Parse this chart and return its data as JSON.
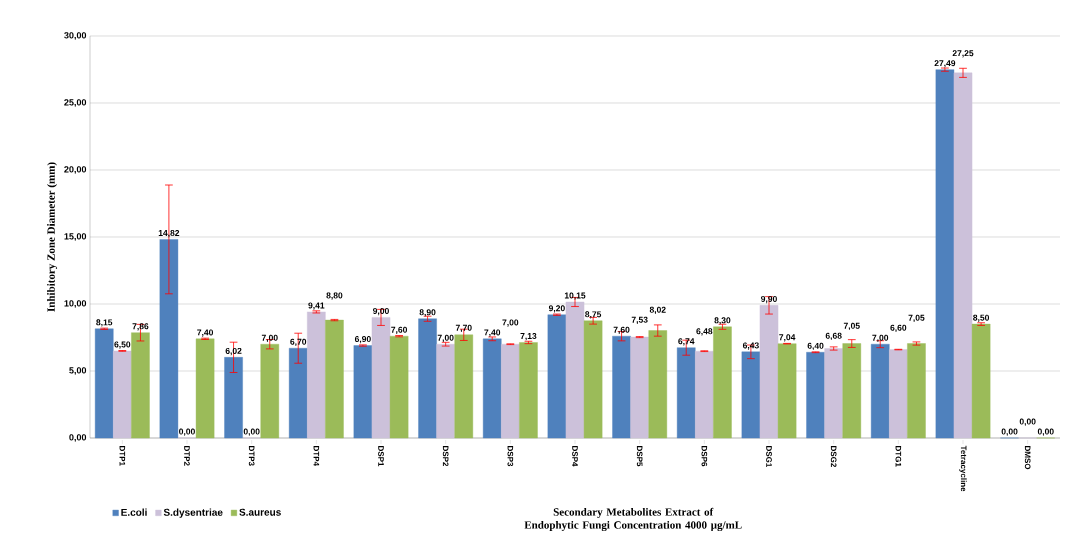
{
  "chart_data": {
    "type": "bar",
    "xlabel": "Secondary Metabolites Extract of Endophytic Fungi Concentration 4000 µg/mL",
    "ylabel": "Inhibitory Zone Diameter (mm)",
    "categories": [
      "DTP1",
      "DTP2",
      "DTP3",
      "DTP4",
      "DSP1",
      "DSP2",
      "DSP3",
      "DSP4",
      "DSP5",
      "DSP6",
      "DSG1",
      "DSG2",
      "DTG1",
      "Tetracycline",
      "DMSO"
    ],
    "series": [
      {
        "name": "E.coli",
        "color": "#4f81bd",
        "values": [
          8.15,
          14.82,
          6.02,
          6.7,
          6.9,
          8.9,
          7.4,
          9.2,
          7.6,
          6.74,
          6.43,
          6.4,
          7.0,
          27.49,
          0.0
        ],
        "errors": [
          0.05,
          4.06,
          1.13,
          1.12,
          0.05,
          0.19,
          0.14,
          0.05,
          0.35,
          0.56,
          0.51,
          0.03,
          0.26,
          0.12,
          null
        ],
        "value_labels": [
          "8,15",
          "14,82",
          "6,02",
          "6,70",
          "6,90",
          "8,90",
          "7,40",
          "9,20",
          "7,60",
          "6,74",
          "6,43",
          "6,40",
          "7,00",
          "27,49",
          "0,00"
        ]
      },
      {
        "name": "S.dysentriae",
        "color": "#ccc1da",
        "values": [
          6.5,
          0.0,
          0.0,
          9.41,
          9.0,
          7.0,
          7.0,
          10.15,
          7.53,
          6.48,
          9.9,
          6.68,
          6.6,
          27.25,
          0.0
        ],
        "errors": [
          0.03,
          null,
          null,
          0.08,
          0.6,
          0.14,
          0.03,
          0.34,
          0.04,
          0.03,
          0.65,
          0.12,
          0.02,
          0.34,
          null
        ],
        "value_labels": [
          "6,50",
          "0,00",
          "0,00",
          "9,41",
          "9,00",
          "7,00",
          "7,00",
          "10,15",
          "7,53",
          "6,48",
          "9,90",
          "6,68",
          "6,60",
          "27,25",
          "0,00"
        ]
      },
      {
        "name": "S.aureus",
        "color": "#9bbb59",
        "values": [
          7.86,
          7.4,
          7.0,
          8.8,
          7.6,
          7.7,
          7.13,
          8.75,
          8.02,
          8.3,
          7.04,
          7.05,
          7.05,
          8.5,
          0.0
        ],
        "errors": [
          0.62,
          0.05,
          0.35,
          0.05,
          0.05,
          0.42,
          0.09,
          0.25,
          0.42,
          0.19,
          0.02,
          0.29,
          0.12,
          0.1,
          null
        ],
        "value_labels": [
          "7,86",
          "7,40",
          "7,00",
          "8,80",
          "7,60",
          "7,70",
          "7,13",
          "8,75",
          "8,02",
          "8,30",
          "7,04",
          "7,05",
          "7,05",
          "8,50",
          "0,00"
        ]
      }
    ],
    "ylim": [
      0,
      30
    ],
    "yticks": [
      {
        "value": 0,
        "label": "0,00"
      },
      {
        "value": 5,
        "label": "5,00"
      },
      {
        "value": 10,
        "label": "10,00"
      },
      {
        "value": 15,
        "label": "15,00"
      },
      {
        "value": 20,
        "label": "20,00"
      },
      {
        "value": 25,
        "label": "25,00"
      },
      {
        "value": 30,
        "label": "30,00"
      }
    ],
    "grid": "y",
    "legend": "bottom left"
  }
}
